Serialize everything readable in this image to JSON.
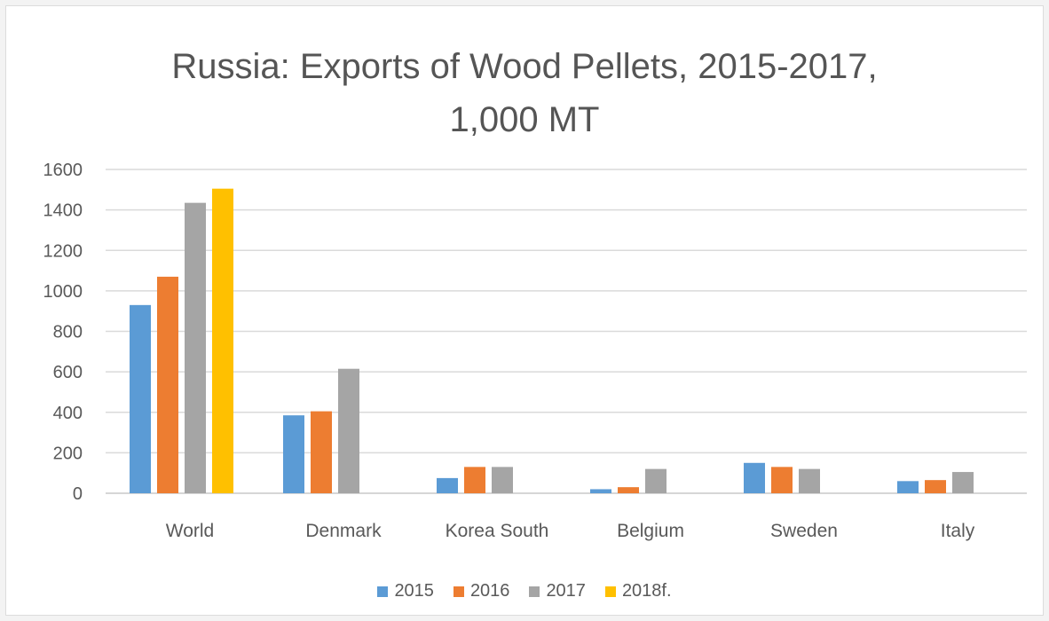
{
  "chart_data": {
    "type": "bar",
    "title_line1": "Russia: Exports of Wood Pellets, 2015-2017,",
    "title_line2": "1,000 MT",
    "categories": [
      "World",
      "Denmark",
      "Korea South",
      "Belgium",
      "Sweden",
      "Italy"
    ],
    "series": [
      {
        "name": "2015",
        "color": "#5b9bd5",
        "values": [
          930,
          385,
          75,
          20,
          150,
          60
        ]
      },
      {
        "name": "2016",
        "color": "#ed7d31",
        "values": [
          1070,
          405,
          130,
          30,
          130,
          65
        ]
      },
      {
        "name": "2017",
        "color": "#a5a5a5",
        "values": [
          1435,
          615,
          130,
          120,
          120,
          105
        ]
      },
      {
        "name": "2018f.",
        "color": "#ffc000",
        "values": [
          1505,
          null,
          null,
          null,
          null,
          null
        ]
      }
    ],
    "ylim": [
      0,
      1600
    ],
    "yticks": [
      0,
      200,
      400,
      600,
      800,
      1000,
      1200,
      1400,
      1600
    ],
    "grid": true,
    "legend_position": "bottom"
  }
}
